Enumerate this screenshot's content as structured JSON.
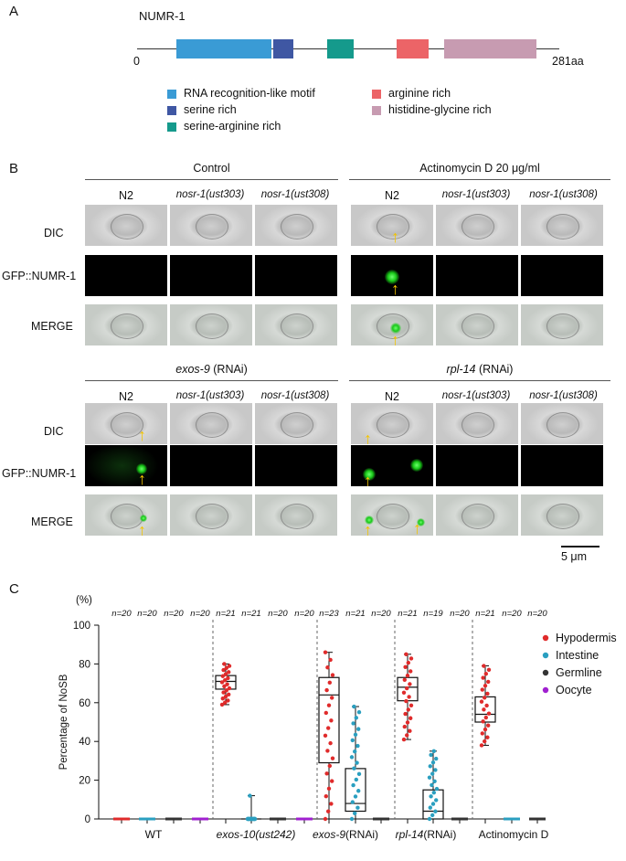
{
  "panelA": {
    "letter": "A",
    "protein": "NUMR-1",
    "start": "0",
    "end": "281aa",
    "legend": [
      {
        "label": "RNA recognition-like motif",
        "color": "#3a9bd5"
      },
      {
        "label": "serine rich",
        "color": "#3f57a3"
      },
      {
        "label": "serine-arginine rich",
        "color": "#159a8c"
      },
      {
        "label": "arginine rich",
        "color": "#ec6467"
      },
      {
        "label": "histidine-glycine rich",
        "color": "#c79bb1"
      }
    ]
  },
  "panelB": {
    "letter": "B",
    "groups": [
      {
        "title_it": "",
        "title": "Control",
        "cols": [
          "N2",
          "nosr-1(ust303)",
          "nosr-1(ust308)"
        ]
      },
      {
        "title_it": "",
        "title": "Actinomycin D 20 μg/ml",
        "cols": [
          "N2",
          "nosr-1(ust303)",
          "nosr-1(ust308)"
        ]
      },
      {
        "title_it": "exos-9",
        "title": " (RNAi)",
        "cols": [
          "N2",
          "nosr-1(ust303)",
          "nosr-1(ust308)"
        ]
      },
      {
        "title_it": "rpl-14",
        "title": " (RNAi)",
        "cols": [
          "N2",
          "nosr-1(ust303)",
          "nosr-1(ust308)"
        ]
      }
    ],
    "rows": [
      "DIC",
      "GFP::NUMR-1",
      "MERGE"
    ],
    "scalebar": "5 μm"
  },
  "panelC": {
    "letter": "C"
  },
  "chart_data": {
    "type": "box",
    "ylabel": "Percentage of NoSB",
    "yunit": "(%)",
    "ylim": [
      0,
      100
    ],
    "yticks": [
      0,
      20,
      40,
      60,
      80,
      100
    ],
    "groups": [
      "WT",
      "exos-10(ust242)",
      "exos-9(RNAi)",
      "rpl-14(RNAi)",
      "Actinomycin D"
    ],
    "legend": [
      {
        "name": "Hypodermis",
        "color": "#e02b2b"
      },
      {
        "name": "Intestine",
        "color": "#2a9fc0"
      },
      {
        "name": "Germline",
        "color": "#333333"
      },
      {
        "name": "Oocyte",
        "color": "#a020d0"
      }
    ],
    "boxes": [
      {
        "group": "WT",
        "tissue": "Hypodermis",
        "n": "n=20",
        "min": 0,
        "q1": 0,
        "median": 0,
        "q3": 0,
        "max": 0
      },
      {
        "group": "WT",
        "tissue": "Intestine",
        "n": "n=20",
        "min": 0,
        "q1": 0,
        "median": 0,
        "q3": 0,
        "max": 0
      },
      {
        "group": "WT",
        "tissue": "Germline",
        "n": "n=20",
        "min": 0,
        "q1": 0,
        "median": 0,
        "q3": 0,
        "max": 0
      },
      {
        "group": "WT",
        "tissue": "Oocyte",
        "n": "n=20",
        "min": 0,
        "q1": 0,
        "median": 0,
        "q3": 0,
        "max": 0
      },
      {
        "group": "exos-10(ust242)",
        "tissue": "Hypodermis",
        "n": "n=21",
        "min": 59,
        "q1": 67,
        "median": 71,
        "q3": 74,
        "max": 80
      },
      {
        "group": "exos-10(ust242)",
        "tissue": "Intestine",
        "n": "n=21",
        "min": 0,
        "q1": 0,
        "median": 0,
        "q3": 0,
        "max": 12
      },
      {
        "group": "exos-10(ust242)",
        "tissue": "Germline",
        "n": "n=20",
        "min": 0,
        "q1": 0,
        "median": 0,
        "q3": 0,
        "max": 0
      },
      {
        "group": "exos-10(ust242)",
        "tissue": "Oocyte",
        "n": "n=20",
        "min": 0,
        "q1": 0,
        "median": 0,
        "q3": 0,
        "max": 0
      },
      {
        "group": "exos-9(RNAi)",
        "tissue": "Hypodermis",
        "n": "n=23",
        "min": 0,
        "q1": 29,
        "median": 64,
        "q3": 73,
        "max": 86
      },
      {
        "group": "exos-9(RNAi)",
        "tissue": "Intestine",
        "n": "n=21",
        "min": 0,
        "q1": 4,
        "median": 8,
        "q3": 26,
        "max": 58
      },
      {
        "group": "exos-9(RNAi)",
        "tissue": "Germline",
        "n": "n=20",
        "min": 0,
        "q1": 0,
        "median": 0,
        "q3": 0,
        "max": 0
      },
      {
        "group": "rpl-14(RNAi)",
        "tissue": "Hypodermis",
        "n": "n=21",
        "min": 41,
        "q1": 61,
        "median": 68,
        "q3": 73,
        "max": 85
      },
      {
        "group": "rpl-14(RNAi)",
        "tissue": "Intestine",
        "n": "n=19",
        "min": 0,
        "q1": 0,
        "median": 4,
        "q3": 15,
        "max": 35
      },
      {
        "group": "rpl-14(RNAi)",
        "tissue": "Germline",
        "n": "n=20",
        "min": 0,
        "q1": 0,
        "median": 0,
        "q3": 0,
        "max": 0
      },
      {
        "group": "Actinomycin D",
        "tissue": "Hypodermis",
        "n": "n=21",
        "min": 38,
        "q1": 50,
        "median": 54,
        "q3": 63,
        "max": 79
      },
      {
        "group": "Actinomycin D",
        "tissue": "Intestine",
        "n": "n=20",
        "min": 0,
        "q1": 0,
        "median": 0,
        "q3": 0,
        "max": 0
      },
      {
        "group": "Actinomycin D",
        "tissue": "Germline",
        "n": "n=20",
        "min": 0,
        "q1": 0,
        "median": 0,
        "q3": 0,
        "max": 0
      }
    ]
  }
}
